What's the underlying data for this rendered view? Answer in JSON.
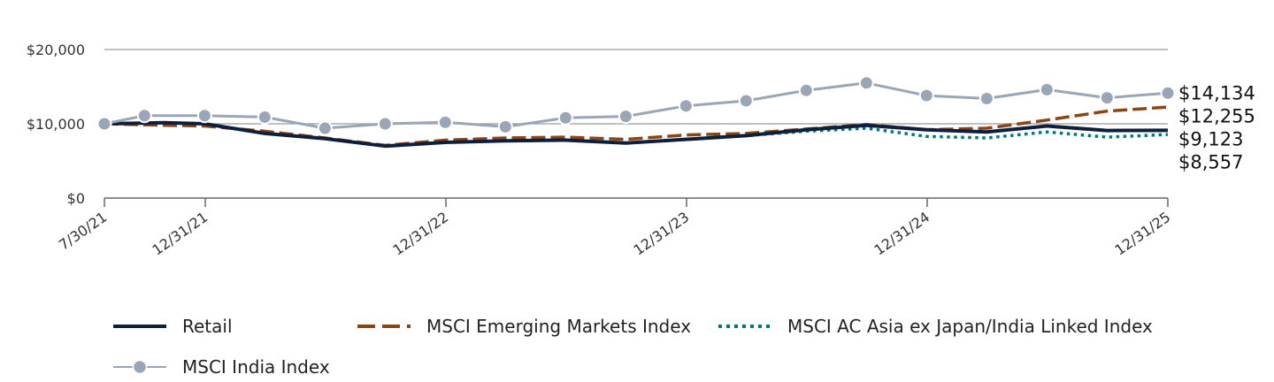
{
  "chart_data": {
    "type": "line",
    "title": "",
    "xlabel": "",
    "ylabel": "",
    "ylim": [
      0,
      20000
    ],
    "y_ticks": [
      {
        "value": 0,
        "label": "$0"
      },
      {
        "value": 10000,
        "label": "$10,000"
      },
      {
        "value": 20000,
        "label": "$20,000"
      }
    ],
    "x_ticks": [
      {
        "t": 0,
        "label": "7/30/21"
      },
      {
        "t": 5.03,
        "label": "12/31/21"
      },
      {
        "t": 17.03,
        "label": "12/31/22"
      },
      {
        "t": 29.03,
        "label": "12/31/23"
      },
      {
        "t": 41.03,
        "label": "12/31/24"
      },
      {
        "t": 53.03,
        "label": "12/31/25"
      }
    ],
    "x_range": [
      0,
      53.03
    ],
    "grid": "horizontal",
    "series": [
      {
        "name": "Retail",
        "color": "#0d1f3c",
        "style": "solid",
        "t": [
          0,
          3,
          5,
          8,
          11,
          14,
          17,
          20,
          23,
          26,
          29,
          32,
          35,
          38,
          41,
          44,
          47,
          50,
          53.03
        ],
        "values": [
          10000,
          10150,
          10000,
          8700,
          8000,
          7000,
          7500,
          7700,
          7800,
          7400,
          7900,
          8400,
          9200,
          9800,
          9200,
          8900,
          9700,
          9100,
          9123
        ]
      },
      {
        "name": "MSCI Emerging Markets Index",
        "color": "#8b4513",
        "style": "dashed",
        "t": [
          0,
          3,
          5,
          8,
          11,
          14,
          17,
          20,
          23,
          26,
          29,
          32,
          35,
          38,
          41,
          44,
          47,
          50,
          53.03
        ],
        "values": [
          10000,
          9800,
          9700,
          9000,
          8100,
          7100,
          7800,
          8100,
          8200,
          7900,
          8500,
          8700,
          9300,
          9900,
          9200,
          9400,
          10500,
          11700,
          12255
        ]
      },
      {
        "name": "MSCI AC Asia ex Japan/India Linked Index",
        "color": "#007a78",
        "style": "dotted",
        "t": [
          29,
          32,
          35,
          38,
          41,
          44,
          47,
          50,
          53.03
        ],
        "values": [
          7900,
          8400,
          9000,
          9400,
          8300,
          8100,
          8900,
          8200,
          8557
        ]
      },
      {
        "name": "MSCI India Index",
        "color": "#9aa5b5",
        "style": "solid-markers",
        "t": [
          0,
          2,
          5,
          8,
          11,
          14,
          17,
          20,
          23,
          26,
          29,
          32,
          35,
          38,
          41,
          44,
          47,
          50,
          53.03
        ],
        "values": [
          10000,
          11100,
          11100,
          10900,
          9400,
          10000,
          10200,
          9600,
          10800,
          11000,
          12400,
          13100,
          14500,
          15500,
          13800,
          13400,
          14600,
          13500,
          14134
        ]
      }
    ],
    "end_labels": [
      {
        "series": "MSCI India Index",
        "label": "$14,134",
        "value": 14134
      },
      {
        "series": "MSCI Emerging Markets Index",
        "label": "$12,255",
        "value": 12255
      },
      {
        "series": "Retail",
        "label": "$9,123",
        "value": 9123
      },
      {
        "series": "MSCI AC Asia ex Japan/India Linked Index",
        "label": "$8,557",
        "value": 8557
      }
    ],
    "legend": {
      "placement": "bottom",
      "items": [
        {
          "series": "Retail",
          "label": "Retail"
        },
        {
          "series": "MSCI Emerging Markets Index",
          "label": "MSCI Emerging Markets Index"
        },
        {
          "series": "MSCI AC Asia ex Japan/India Linked Index",
          "label": "MSCI AC Asia ex Japan/India Linked Index"
        },
        {
          "series": "MSCI India Index",
          "label": "MSCI India Index"
        }
      ]
    }
  }
}
